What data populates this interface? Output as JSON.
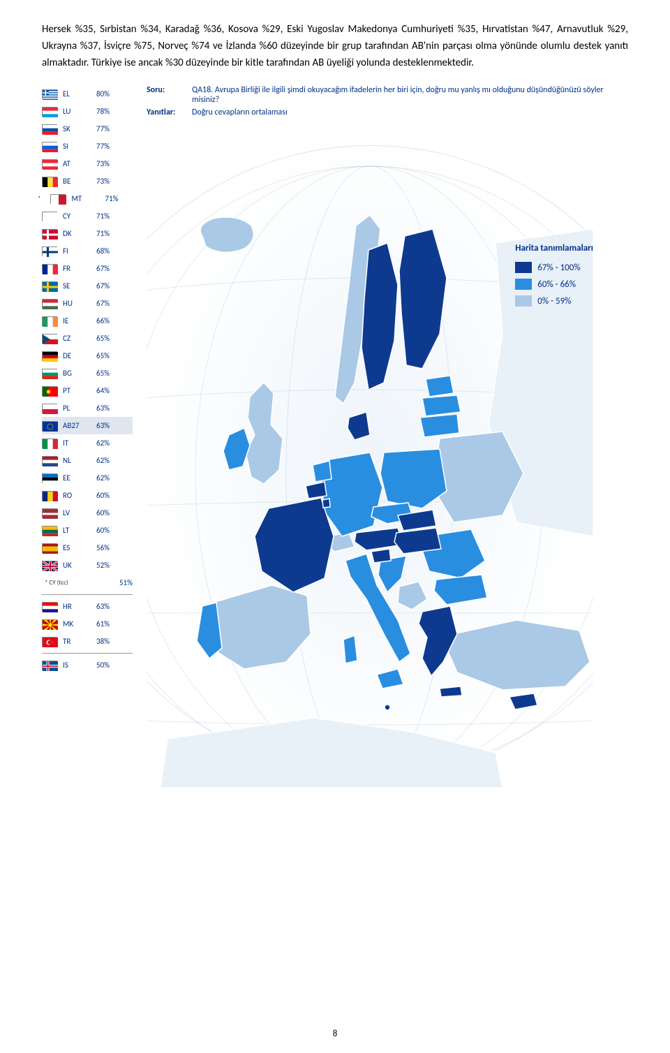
{
  "paragraph_text": "Hersek %35, Sırbistan %34, Karadağ %36, Kosova %29, Eski Yugoslav Makedonya Cumhuriyeti %35, Hırvatistan %47, Arnavutluk %29, Ukrayna %37, İsviçre %75, Norveç %74 ve İzlanda %60 düzeyinde bir grup tarafından AB'nin parçası olma yönünde olumlu destek yanıtı almaktadır. Türkiye ise ancak %30 düzeyinde bir kitle tarafından AB üyeliği yolunda desteklenmektedir.",
  "question_label": "Soru:",
  "question_text": "QA18. Avrupa Birliği ile ilgili şimdi okuyacağım ifadelerin her biri için, doğru mu yanlış mı olduğunu düşündüğünüzü söyler misiniz?",
  "answer_label": "Yanıtlar:",
  "answer_text": "Doğru cevapların ortalaması",
  "legend_title": "Harita tanımlamaları",
  "legend_items": [
    {
      "label": "67% - 100%",
      "color": "#0d3a8f"
    },
    {
      "label": "60% - 66%",
      "color": "#2a8ee0"
    },
    {
      "label": "0% - 59%",
      "color": "#a9c9e6"
    }
  ],
  "colors": {
    "dark": "#0d3a8f",
    "mid": "#2a8ee0",
    "light": "#a9c9e6",
    "text": "#002f87"
  },
  "countries": [
    {
      "code": "EL",
      "pct": "80%",
      "flag_colors": [
        "#0d5eaf",
        "#ffffff"
      ],
      "flag_type": "stripes-h9"
    },
    {
      "code": "LU",
      "pct": "78%",
      "flag_colors": [
        "#ed2939",
        "#ffffff",
        "#00a1de"
      ],
      "flag_type": "stripes-h3"
    },
    {
      "code": "SK",
      "pct": "77%",
      "flag_colors": [
        "#ffffff",
        "#0b4ea2",
        "#ee1c25"
      ],
      "flag_type": "stripes-h3"
    },
    {
      "code": "SI",
      "pct": "77%",
      "flag_colors": [
        "#ffffff",
        "#005ce5",
        "#ed1c24"
      ],
      "flag_type": "stripes-h3"
    },
    {
      "code": "AT",
      "pct": "73%",
      "flag_colors": [
        "#ed2939",
        "#ffffff",
        "#ed2939"
      ],
      "flag_type": "stripes-h3"
    },
    {
      "code": "BE",
      "pct": "73%",
      "flag_colors": [
        "#000000",
        "#fae042",
        "#ed2939"
      ],
      "flag_type": "stripes-v3"
    },
    {
      "code": "MT",
      "pct": "71%",
      "flag_colors": [
        "#ffffff",
        "#cf142b"
      ],
      "flag_type": "stripes-v2",
      "note": "*"
    },
    {
      "code": "CY",
      "pct": "71%",
      "flag_colors": [
        "#ffffff"
      ],
      "flag_type": "solid"
    },
    {
      "code": "DK",
      "pct": "71%",
      "flag_colors": [
        "#c8102e",
        "#ffffff"
      ],
      "flag_type": "nordic"
    },
    {
      "code": "FI",
      "pct": "68%",
      "flag_colors": [
        "#ffffff",
        "#003580"
      ],
      "flag_type": "nordic"
    },
    {
      "code": "FR",
      "pct": "67%",
      "flag_colors": [
        "#002395",
        "#ffffff",
        "#ed2939"
      ],
      "flag_type": "stripes-v3"
    },
    {
      "code": "SE",
      "pct": "67%",
      "flag_colors": [
        "#006aa7",
        "#fecc00"
      ],
      "flag_type": "nordic"
    },
    {
      "code": "HU",
      "pct": "67%",
      "flag_colors": [
        "#cd2a3e",
        "#ffffff",
        "#436f4d"
      ],
      "flag_type": "stripes-h3"
    },
    {
      "code": "IE",
      "pct": "66%",
      "flag_colors": [
        "#169b62",
        "#ffffff",
        "#ff883e"
      ],
      "flag_type": "stripes-v3"
    },
    {
      "code": "CZ",
      "pct": "65%",
      "flag_colors": [
        "#ffffff",
        "#d7141a",
        "#11457e"
      ],
      "flag_type": "cz"
    },
    {
      "code": "DE",
      "pct": "65%",
      "flag_colors": [
        "#000000",
        "#dd0000",
        "#ffce00"
      ],
      "flag_type": "stripes-h3"
    },
    {
      "code": "BG",
      "pct": "65%",
      "flag_colors": [
        "#ffffff",
        "#00966e",
        "#d62612"
      ],
      "flag_type": "stripes-h3"
    },
    {
      "code": "PT",
      "pct": "64%",
      "flag_colors": [
        "#006600",
        "#ff0000"
      ],
      "flag_type": "pt"
    },
    {
      "code": "PL",
      "pct": "63%",
      "flag_colors": [
        "#ffffff",
        "#dc143c"
      ],
      "flag_type": "stripes-h2"
    },
    {
      "code": "AB27",
      "pct": "63%",
      "flag_colors": [
        "#003399"
      ],
      "flag_type": "eu",
      "highlight": true
    },
    {
      "code": "IT",
      "pct": "62%",
      "flag_colors": [
        "#009246",
        "#ffffff",
        "#ce2b37"
      ],
      "flag_type": "stripes-v3"
    },
    {
      "code": "NL",
      "pct": "62%",
      "flag_colors": [
        "#ae1c28",
        "#ffffff",
        "#21468b"
      ],
      "flag_type": "stripes-h3"
    },
    {
      "code": "EE",
      "pct": "62%",
      "flag_colors": [
        "#0072ce",
        "#000000",
        "#ffffff"
      ],
      "flag_type": "stripes-h3"
    },
    {
      "code": "RO",
      "pct": "60%",
      "flag_colors": [
        "#002b7f",
        "#fcd116",
        "#ce1126"
      ],
      "flag_type": "stripes-v3"
    },
    {
      "code": "LV",
      "pct": "60%",
      "flag_colors": [
        "#9e3039",
        "#ffffff",
        "#9e3039"
      ],
      "flag_type": "lv"
    },
    {
      "code": "LT",
      "pct": "60%",
      "flag_colors": [
        "#fdb913",
        "#006a44",
        "#c1272d"
      ],
      "flag_type": "stripes-h3"
    },
    {
      "code": "ES",
      "pct": "56%",
      "flag_colors": [
        "#aa151b",
        "#f1bf00",
        "#aa151b"
      ],
      "flag_type": "es"
    },
    {
      "code": "UK",
      "pct": "52%",
      "flag_colors": [
        "#012169",
        "#ffffff",
        "#c8102e"
      ],
      "flag_type": "uk"
    }
  ],
  "cy_tcc": {
    "code": "* CY (tcc)",
    "pct": "51%"
  },
  "candidates": [
    {
      "code": "HR",
      "pct": "63%",
      "flag_colors": [
        "#ff0000",
        "#ffffff",
        "#171796"
      ],
      "flag_type": "stripes-h3"
    },
    {
      "code": "MK",
      "pct": "61%",
      "flag_colors": [
        "#d20000",
        "#ffe600"
      ],
      "flag_type": "mk"
    },
    {
      "code": "TR",
      "pct": "38%",
      "flag_colors": [
        "#e30a17",
        "#ffffff"
      ],
      "flag_type": "tr"
    }
  ],
  "iceland": {
    "code": "IS",
    "pct": "50%",
    "flag_colors": [
      "#02529c",
      "#ffffff",
      "#dc1e35"
    ],
    "flag_type": "nordic-is"
  },
  "page_number": "8"
}
